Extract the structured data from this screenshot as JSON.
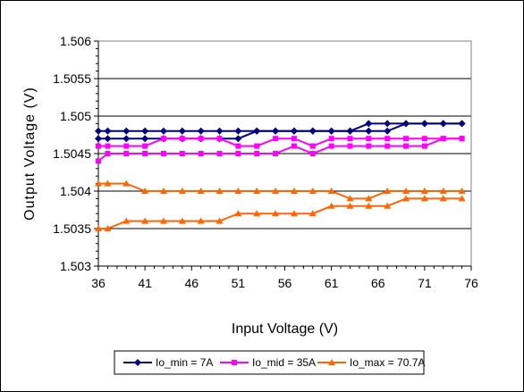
{
  "chart_data": {
    "type": "line",
    "title": "",
    "xlabel": "Input Voltage (V)",
    "ylabel": "Output Voltage (V)",
    "xlim": [
      36,
      76
    ],
    "ylim": [
      1.503,
      1.506
    ],
    "xticks": [
      36,
      41,
      46,
      51,
      56,
      61,
      66,
      71,
      76
    ],
    "yticks": [
      1.503,
      1.5035,
      1.504,
      1.5045,
      1.505,
      1.5055,
      1.506
    ],
    "ytick_labels": [
      "1.503",
      "1.5035",
      "1.504",
      "1.5045",
      "1.505",
      "1.5055",
      "1.506"
    ],
    "grid": "horizontal",
    "legend_position": "bottom",
    "x": [
      36,
      37,
      39,
      41,
      43,
      45,
      47,
      49,
      51,
      53,
      55,
      57,
      59,
      61,
      63,
      65,
      67,
      69,
      71,
      73,
      75
    ],
    "series": [
      {
        "name": "Io_min = 7A",
        "color": "#000080",
        "marker": "diamond",
        "upper": [
          1.5048,
          1.5048,
          1.5048,
          1.5048,
          1.5048,
          1.5048,
          1.5048,
          1.5048,
          1.5048,
          1.5048,
          1.5048,
          1.5048,
          1.5048,
          1.5048,
          1.5048,
          1.5049,
          1.5049,
          1.5049,
          1.5049,
          1.5049,
          1.5049
        ],
        "lower": [
          1.5047,
          1.5047,
          1.5047,
          1.5047,
          1.5047,
          1.5047,
          1.5047,
          1.5047,
          1.5047,
          1.5048,
          1.5048,
          1.5048,
          1.5048,
          1.5048,
          1.5048,
          1.5048,
          1.5048,
          1.5049,
          1.5049,
          1.5049,
          1.5049
        ]
      },
      {
        "name": "Io_mid = 35A",
        "color": "#ff00ff",
        "marker": "square",
        "upper": [
          1.5046,
          1.5046,
          1.5046,
          1.5046,
          1.5047,
          1.5047,
          1.5047,
          1.5047,
          1.5046,
          1.5046,
          1.5047,
          1.5047,
          1.5046,
          1.5047,
          1.5047,
          1.5047,
          1.5047,
          1.5047,
          1.5047,
          1.5047,
          1.5047
        ],
        "lower": [
          1.5044,
          1.5045,
          1.5045,
          1.5045,
          1.5045,
          1.5045,
          1.5045,
          1.5045,
          1.5045,
          1.5045,
          1.5045,
          1.5046,
          1.5045,
          1.5046,
          1.5046,
          1.5046,
          1.5046,
          1.5046,
          1.5046,
          1.5047,
          1.5047
        ]
      },
      {
        "name": "Io_max = 70.7A",
        "color": "#ff6600",
        "marker": "triangle",
        "upper": [
          1.5041,
          1.5041,
          1.5041,
          1.504,
          1.504,
          1.504,
          1.504,
          1.504,
          1.504,
          1.504,
          1.504,
          1.504,
          1.504,
          1.504,
          1.5039,
          1.5039,
          1.504,
          1.504,
          1.504,
          1.504,
          1.504
        ],
        "lower": [
          1.5035,
          1.5035,
          1.5036,
          1.5036,
          1.5036,
          1.5036,
          1.5036,
          1.5036,
          1.5037,
          1.5037,
          1.5037,
          1.5037,
          1.5037,
          1.5038,
          1.5038,
          1.5038,
          1.5038,
          1.5039,
          1.5039,
          1.5039,
          1.5039
        ]
      }
    ]
  }
}
